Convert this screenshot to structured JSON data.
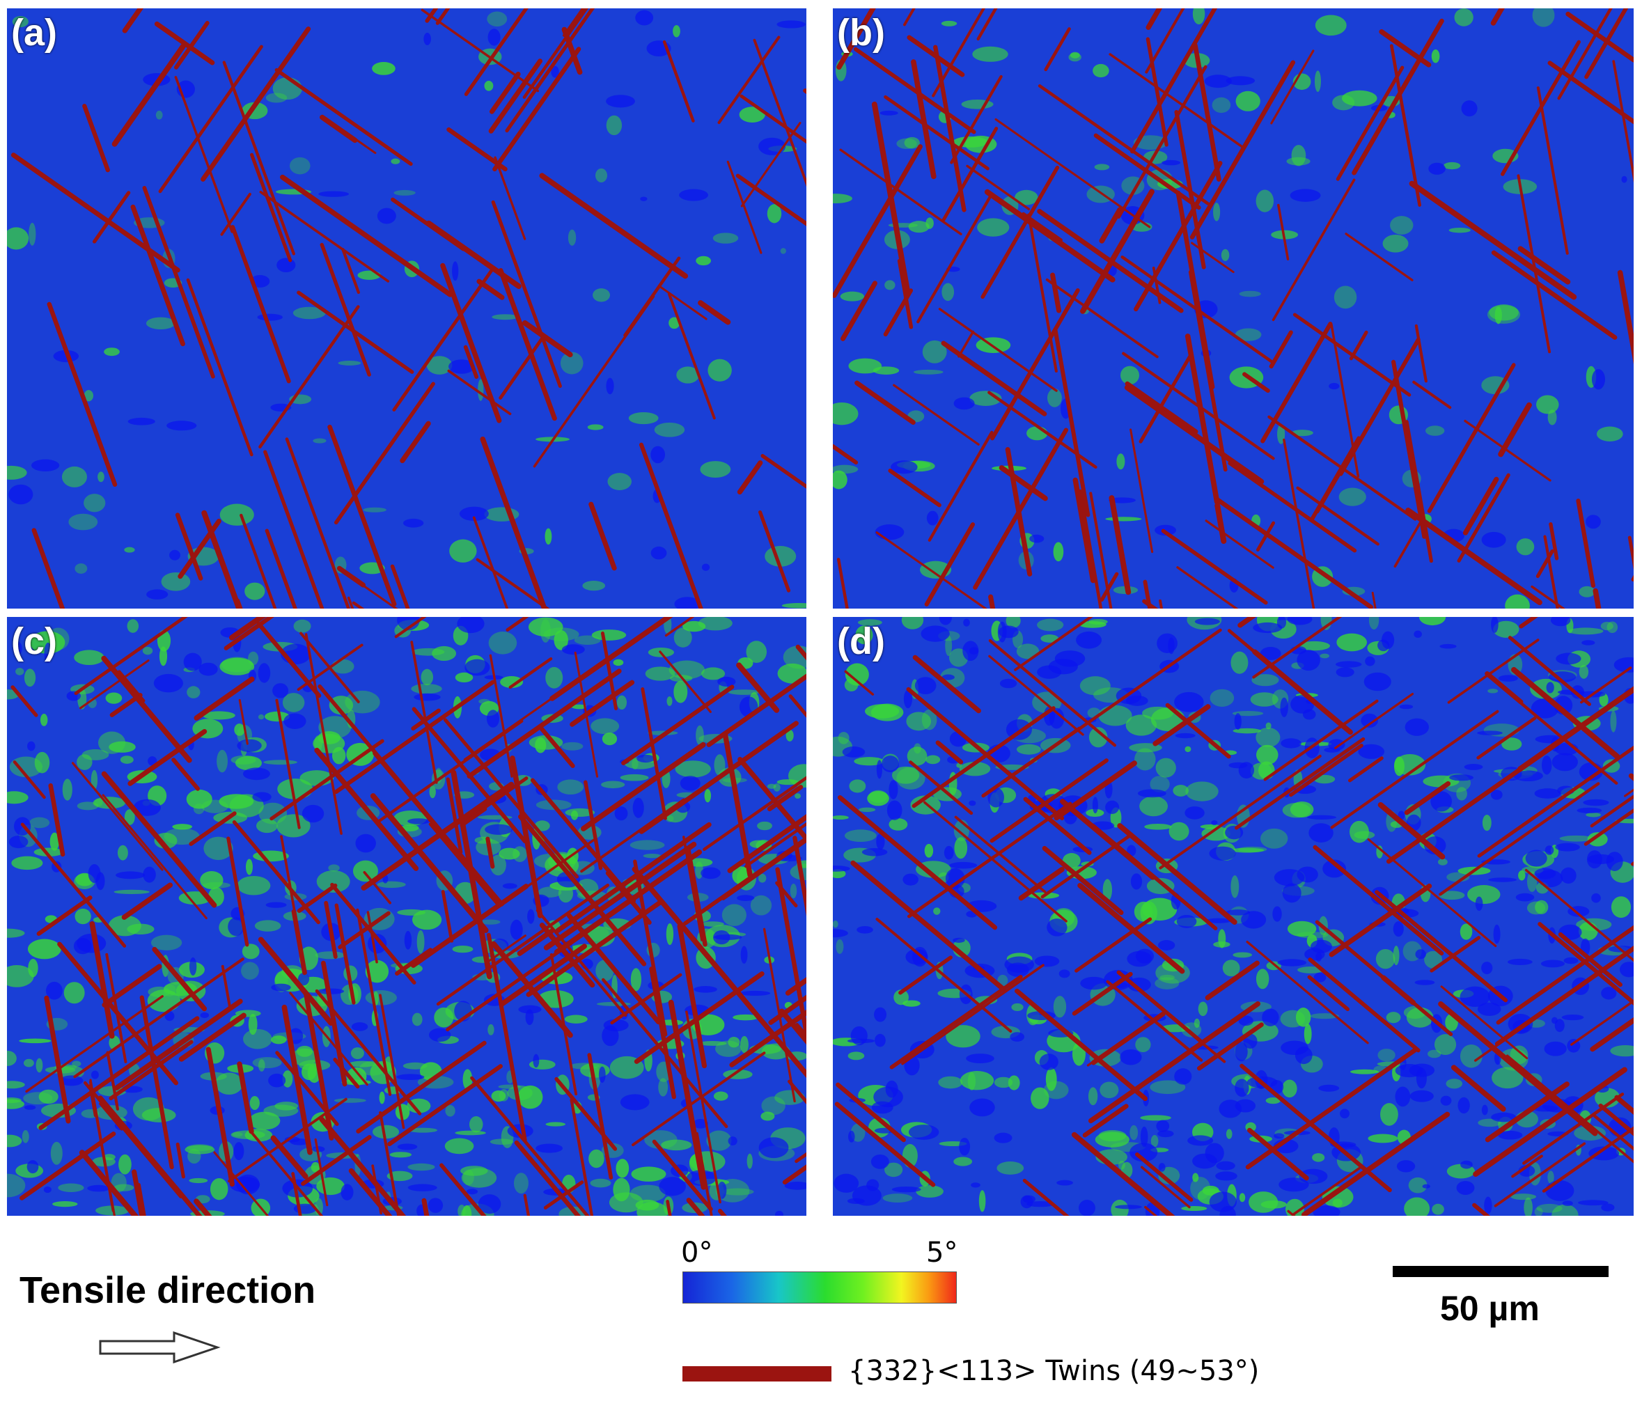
{
  "panels": [
    {
      "id": "a",
      "label": "(a)"
    },
    {
      "id": "b",
      "label": "(b)"
    },
    {
      "id": "c",
      "label": "(c)"
    },
    {
      "id": "d",
      "label": "(d)"
    }
  ],
  "tensile": {
    "label": "Tensile direction",
    "arrow_icon": "right-arrow-outline-icon"
  },
  "colorbar": {
    "min_label": "0°",
    "max_label": "5°",
    "colors": [
      "#1525d6",
      "#1a66e6",
      "#18c6c8",
      "#2bdc2e",
      "#70f020",
      "#f2f520",
      "#fa9a12",
      "#f0281a"
    ]
  },
  "scalebar": {
    "label": "50 µm"
  },
  "legend": {
    "label": "{332}<113> Twins  (49~53°)",
    "color": "#9b1410"
  },
  "colors": {
    "matrix_blue": "#1a3fd6",
    "deep_blue": "#0a14f0",
    "kam_green": "#3ad63a",
    "twin_red": "#9b1410"
  }
}
